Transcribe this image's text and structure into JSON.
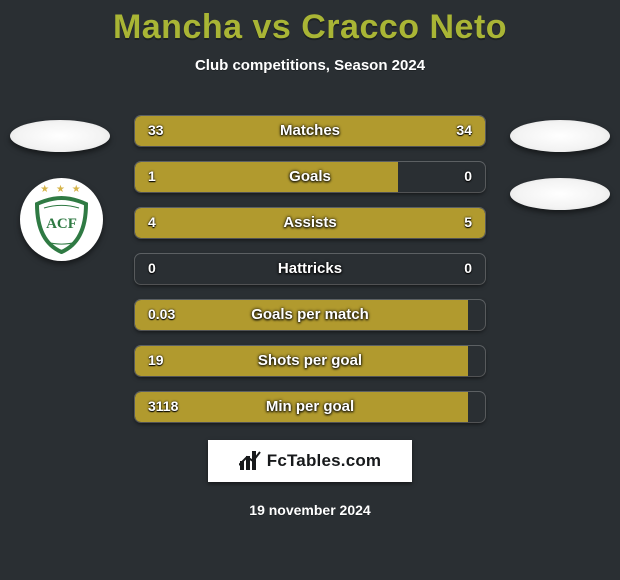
{
  "title": "Mancha vs Cracco Neto",
  "subtitle": "Club competitions, Season 2024",
  "date": "19 november 2024",
  "brand": "FcTables.com",
  "colors": {
    "accent": "#a9b535",
    "bar_left": "#b19a2e",
    "bar_right": "#b19a2e",
    "background": "#2a2f33",
    "text": "#ffffff"
  },
  "bar": {
    "track_width": 350
  },
  "stats": [
    {
      "label": "Matches",
      "left_text": "33",
      "right_text": "34",
      "left_pct": 49,
      "right_pct": 51
    },
    {
      "label": "Goals",
      "left_text": "1",
      "right_text": "0",
      "left_pct": 75,
      "right_pct": 0
    },
    {
      "label": "Assists",
      "left_text": "4",
      "right_text": "5",
      "left_pct": 44,
      "right_pct": 56
    },
    {
      "label": "Hattricks",
      "left_text": "0",
      "right_text": "0",
      "left_pct": 0,
      "right_pct": 0
    },
    {
      "label": "Goals per match",
      "left_text": "0.03",
      "right_text": "",
      "left_pct": 95,
      "right_pct": 0
    },
    {
      "label": "Shots per goal",
      "left_text": "19",
      "right_text": "",
      "left_pct": 95,
      "right_pct": 0
    },
    {
      "label": "Min per goal",
      "left_text": "3118",
      "right_text": "",
      "left_pct": 95,
      "right_pct": 0
    }
  ],
  "badge": {
    "ring_color": "#2f7a43",
    "inner_color": "#ffffff",
    "letters": "ACF",
    "letters_color": "#2f7a43"
  }
}
